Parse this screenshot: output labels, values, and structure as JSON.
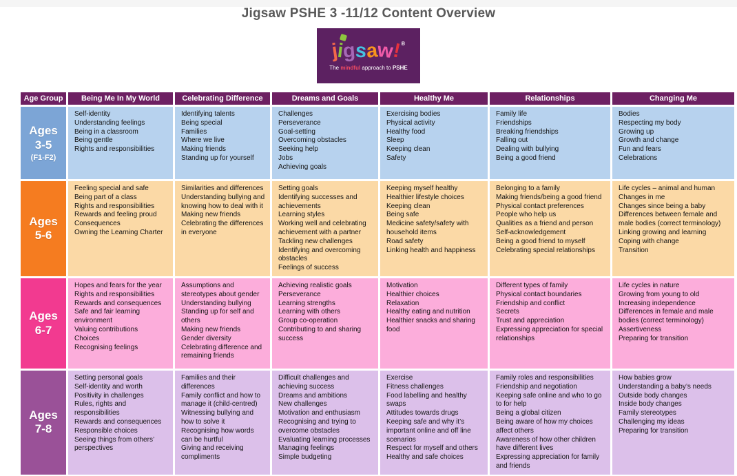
{
  "page": {
    "title": "Jigsaw PSHE 3 -11/12 Content Overview"
  },
  "logo": {
    "bg": "#5c2161",
    "letters": [
      {
        "char": "j",
        "color": "#f2684a"
      },
      {
        "char": "i",
        "color": "#8dc63f"
      },
      {
        "char": "g",
        "color": "#a668b5"
      },
      {
        "char": "s",
        "color": "#45c2e0"
      },
      {
        "char": "a",
        "color": "#f7941d"
      },
      {
        "char": "w",
        "color": "#ef5aa7"
      },
      {
        "char": "!",
        "color": "#e8323c"
      }
    ],
    "registered": "®",
    "tagline_pre": "The ",
    "tagline_em": "mindful",
    "tagline_mid": " approach to ",
    "tagline_brand": "PSHE",
    "tagline_em_color": "#ef4b63"
  },
  "table": {
    "header_bg": "#6d2062",
    "columns": [
      "Age Group",
      "Being Me In My World",
      "Celebrating Difference",
      "Dreams and Goals",
      "Healthy Me",
      "Relationships",
      "Changing Me"
    ],
    "rows": [
      {
        "age_lines": [
          "Ages",
          "3-5"
        ],
        "age_sub": "(F1-F2)",
        "age_bg": "#7ca5d6",
        "cell_bg": "#b7d2ee",
        "cells": [
          [
            "Self-identity",
            "Understanding feelings",
            "Being in a classroom",
            "Being gentle",
            "Rights and responsibilities"
          ],
          [
            "Identifying talents",
            "Being special",
            "Families",
            "Where we live",
            "Making friends",
            "Standing up for yourself"
          ],
          [
            "Challenges",
            "Perseverance",
            "Goal-setting",
            "Overcoming obstacles",
            "Seeking help",
            "Jobs",
            "Achieving goals"
          ],
          [
            "Exercising bodies",
            "Physical activity",
            "Healthy food",
            "Sleep",
            "Keeping clean",
            "Safety"
          ],
          [
            "Family life",
            "Friendships",
            "Breaking friendships",
            "Falling out",
            "Dealing with bullying",
            "Being a good friend"
          ],
          [
            "Bodies",
            "Respecting my body",
            "Growing up",
            "Growth and change",
            "Fun and fears",
            "Celebrations"
          ]
        ]
      },
      {
        "age_lines": [
          "Ages",
          "5-6"
        ],
        "age_sub": "",
        "age_bg": "#f57c20",
        "cell_bg": "#fbd9a6",
        "cells": [
          [
            "Feeling special and safe",
            "Being part of a class",
            "Rights and responsibilities",
            "Rewards and feeling proud",
            "Consequences",
            "Owning the Learning Charter"
          ],
          [
            "Similarities and differences",
            "Understanding bullying and knowing how to deal with it",
            "Making new friends",
            "Celebrating the differences in everyone"
          ],
          [
            "Setting goals",
            "Identifying successes and achievements",
            "Learning styles",
            "Working well and celebrating achievement with a partner",
            "Tackling new challenges",
            "Identifying and overcoming obstacles",
            "Feelings of success"
          ],
          [
            "Keeping myself healthy",
            "Healthier lifestyle choices",
            "Keeping clean",
            "Being safe",
            "Medicine safety/safety with household items",
            "Road safety",
            "Linking health and happiness"
          ],
          [
            "Belonging to a family",
            "Making friends/being a good friend",
            "Physical contact preferences",
            "People who help us",
            "Qualities as a friend and person",
            "Self-acknowledgement",
            "Being a good friend to myself",
            "Celebrating special relationships"
          ],
          [
            "Life cycles – animal and human",
            "Changes in me",
            "Changes since being a baby",
            "Differences between female and male bodies (correct terminology)",
            "Linking growing and learning",
            "Coping with change",
            "Transition"
          ]
        ]
      },
      {
        "age_lines": [
          "Ages",
          "6-7"
        ],
        "age_sub": "",
        "age_bg": "#f23a90",
        "cell_bg": "#fcaddb",
        "cells": [
          [
            "Hopes and fears for the year",
            "Rights and responsibilities",
            "Rewards and consequences",
            "Safe and fair learning environment",
            "Valuing contributions",
            "Choices",
            "Recognising feelings"
          ],
          [
            "Assumptions and stereotypes about gender",
            "Understanding bullying",
            "Standing up for self and others",
            "Making new friends",
            "Gender diversity",
            "Celebrating difference and remaining friends"
          ],
          [
            "Achieving realistic goals",
            "Perseverance",
            "Learning strengths",
            "Learning with others",
            "Group co-operation",
            "Contributing to and sharing success"
          ],
          [
            "Motivation",
            "Healthier choices",
            "Relaxation",
            "Healthy eating and nutrition",
            "Healthier snacks and sharing food"
          ],
          [
            "Different types of family",
            "Physical contact boundaries",
            "Friendship and conflict",
            "Secrets",
            "Trust and appreciation",
            "Expressing appreciation for special relationships"
          ],
          [
            "Life cycles in nature",
            "Growing from young to old",
            "Increasing independence",
            "Differences in female and male bodies (correct terminology)",
            "Assertiveness",
            "Preparing for transition"
          ]
        ]
      },
      {
        "age_lines": [
          "Ages",
          "7-8"
        ],
        "age_sub": "",
        "age_bg": "#9a5198",
        "cell_bg": "#dcc0ea",
        "cells": [
          [
            "Setting personal goals",
            "Self-identity and worth",
            "Positivity in challenges",
            "Rules, rights and responsibilities",
            "Rewards and consequences",
            "Responsible choices",
            "Seeing things from others’ perspectives"
          ],
          [
            "Families and their differences",
            "Family conflict and how to manage it (child-centred)",
            "Witnessing bullying and how to solve it",
            "Recognising how words can be hurtful",
            "Giving and receiving compliments"
          ],
          [
            "Difficult challenges and achieving success",
            "Dreams and ambitions",
            "New challenges",
            "Motivation and enthusiasm",
            "Recognising and trying to overcome obstacles",
            "Evaluating learning processes",
            "Managing feelings",
            "Simple budgeting"
          ],
          [
            "Exercise",
            "Fitness challenges",
            "Food labelling and healthy swaps",
            "Attitudes towards drugs",
            "Keeping safe and why it’s important online and off line scenarios",
            "Respect for myself and others",
            "Healthy and safe choices"
          ],
          [
            "Family roles and responsibilities",
            "Friendship and negotiation",
            "Keeping safe online and who to go to for help",
            "Being a global citizen",
            "Being aware of how my choices affect others",
            "Awareness of how other children have different lives",
            "Expressing appreciation for family and friends"
          ],
          [
            "How babies grow",
            "Understanding a baby’s needs",
            "Outside body changes",
            "Inside body changes",
            "Family stereotypes",
            "Challenging my ideas",
            "Preparing for transition"
          ]
        ]
      }
    ]
  }
}
